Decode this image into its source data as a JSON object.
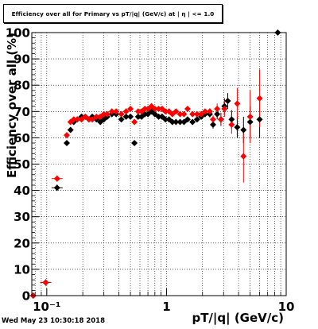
{
  "chart_data": {
    "type": "scatter",
    "title": "Efficiency over all for Primary vs pT/|q| (GeV/c) at | η | <= 1.0",
    "xlabel": "pT/|q| (GeV/c)",
    "ylabel": "Efficiency over all (%)",
    "x_scale": "log",
    "xlim": [
      0.075,
      10
    ],
    "ylim": [
      0,
      100
    ],
    "grid": true,
    "x_ticks": [
      {
        "value": 0.1,
        "label": "10⁻¹"
      },
      {
        "value": 1,
        "label": "1"
      },
      {
        "value": 10,
        "label": "10"
      }
    ],
    "y_ticks": [
      0,
      10,
      20,
      30,
      40,
      50,
      60,
      70,
      80,
      90,
      100
    ],
    "series": [
      {
        "color": "#000000",
        "points": [
          [
            0.077,
            0,
            0
          ],
          [
            0.098,
            5,
            1.2
          ],
          [
            0.122,
            41,
            1.2
          ],
          [
            0.147,
            58,
            1.0
          ],
          [
            0.158,
            63,
            1.0
          ],
          [
            0.168,
            66,
            0.8
          ],
          [
            0.18,
            67,
            0.8
          ],
          [
            0.195,
            68,
            0.8
          ],
          [
            0.21,
            68,
            0.8
          ],
          [
            0.225,
            67,
            0.8
          ],
          [
            0.24,
            68,
            0.8
          ],
          [
            0.26,
            67,
            0.8
          ],
          [
            0.28,
            66,
            0.8
          ],
          [
            0.3,
            67,
            0.8
          ],
          [
            0.32,
            68,
            0.8
          ],
          [
            0.35,
            69,
            0.8
          ],
          [
            0.38,
            69,
            0.8
          ],
          [
            0.42,
            67,
            0.8
          ],
          [
            0.46,
            68,
            0.8
          ],
          [
            0.5,
            68,
            0.8
          ],
          [
            0.54,
            58,
            0.8
          ],
          [
            0.58,
            68,
            0.8
          ],
          [
            0.62,
            68,
            0.8
          ],
          [
            0.66,
            69,
            0.8
          ],
          [
            0.7,
            69,
            0.8
          ],
          [
            0.75,
            70,
            0.8
          ],
          [
            0.8,
            69,
            0.8
          ],
          [
            0.86,
            68,
            0.8
          ],
          [
            0.92,
            68,
            0.8
          ],
          [
            0.98,
            67,
            0.8
          ],
          [
            1.05,
            67,
            0.8
          ],
          [
            1.12,
            66,
            0.8
          ],
          [
            1.2,
            66,
            0.8
          ],
          [
            1.3,
            66,
            0.8
          ],
          [
            1.4,
            66,
            0.8
          ],
          [
            1.5,
            67,
            0.8
          ],
          [
            1.65,
            66,
            0.8
          ],
          [
            1.8,
            67,
            0.8
          ],
          [
            1.95,
            68,
            1.0
          ],
          [
            2.1,
            69,
            1.0
          ],
          [
            2.3,
            69,
            1.2
          ],
          [
            2.45,
            65,
            1.5
          ],
          [
            2.65,
            69,
            2.0
          ],
          [
            2.85,
            67,
            2.5
          ],
          [
            3.05,
            72,
            3.0
          ],
          [
            3.25,
            74,
            3.0
          ],
          [
            3.5,
            67,
            3.5
          ],
          [
            3.9,
            64,
            4.0
          ],
          [
            4.4,
            63,
            5.0
          ],
          [
            5.0,
            66,
            6.0
          ],
          [
            6.0,
            67,
            7.0
          ],
          [
            8.5,
            100,
            0
          ]
        ]
      },
      {
        "color": "#ff0000",
        "points": [
          [
            0.077,
            0,
            0
          ],
          [
            0.098,
            5,
            1.2
          ],
          [
            0.122,
            44.5,
            1.2
          ],
          [
            0.147,
            61,
            1.0
          ],
          [
            0.158,
            66,
            1.0
          ],
          [
            0.168,
            67,
            0.8
          ],
          [
            0.18,
            67,
            0.8
          ],
          [
            0.195,
            67,
            0.8
          ],
          [
            0.21,
            68,
            0.8
          ],
          [
            0.225,
            67,
            0.8
          ],
          [
            0.24,
            67,
            0.8
          ],
          [
            0.26,
            68,
            0.8
          ],
          [
            0.28,
            68,
            0.8
          ],
          [
            0.3,
            69,
            0.8
          ],
          [
            0.32,
            69,
            0.8
          ],
          [
            0.35,
            70,
            0.8
          ],
          [
            0.38,
            70,
            0.8
          ],
          [
            0.42,
            69,
            0.8
          ],
          [
            0.46,
            70,
            0.8
          ],
          [
            0.5,
            71,
            0.8
          ],
          [
            0.54,
            66,
            0.8
          ],
          [
            0.58,
            70,
            0.8
          ],
          [
            0.62,
            70,
            0.8
          ],
          [
            0.66,
            71,
            0.8
          ],
          [
            0.7,
            71,
            0.8
          ],
          [
            0.75,
            72,
            0.8
          ],
          [
            0.8,
            71,
            0.8
          ],
          [
            0.86,
            71,
            0.8
          ],
          [
            0.92,
            71,
            0.8
          ],
          [
            0.98,
            70,
            0.8
          ],
          [
            1.05,
            70,
            0.8
          ],
          [
            1.12,
            69,
            0.8
          ],
          [
            1.2,
            70,
            0.8
          ],
          [
            1.3,
            69,
            0.8
          ],
          [
            1.4,
            69,
            0.8
          ],
          [
            1.5,
            71,
            0.8
          ],
          [
            1.65,
            69,
            0.8
          ],
          [
            1.8,
            69,
            0.8
          ],
          [
            1.95,
            69,
            1.0
          ],
          [
            2.1,
            70,
            1.0
          ],
          [
            2.3,
            70,
            1.2
          ],
          [
            2.45,
            67,
            1.5
          ],
          [
            2.65,
            71,
            2.0
          ],
          [
            2.85,
            67,
            2.5
          ],
          [
            3.05,
            71,
            3.0
          ],
          [
            3.5,
            65,
            3.5
          ],
          [
            3.9,
            73,
            6.0
          ],
          [
            4.4,
            53,
            10.0
          ],
          [
            5.0,
            68,
            10.0
          ],
          [
            6.0,
            75,
            11.0
          ]
        ]
      }
    ],
    "footer": "Wed May 23 10:30:18 2018"
  }
}
